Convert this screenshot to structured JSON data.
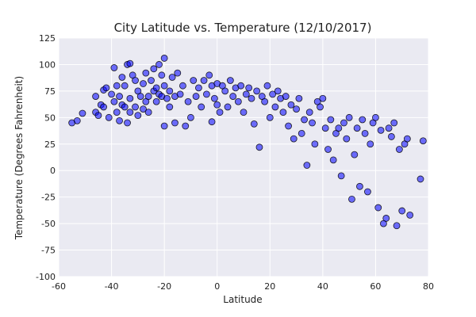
{
  "chart_data": {
    "type": "scatter",
    "title": "City Latitude vs. Temperature (12/10/2017)",
    "xlabel": "Latitude",
    "ylabel": "Temperature (Degrees Fahrenheit)",
    "xlim": [
      -60,
      80
    ],
    "ylim": [
      -100,
      125
    ],
    "xticks": [
      -60,
      -40,
      -20,
      0,
      20,
      40,
      60,
      80
    ],
    "yticks": [
      -100,
      -75,
      -50,
      -25,
      0,
      25,
      50,
      75,
      100,
      125
    ],
    "grid": true,
    "marker_color": "#0000ff",
    "edge_color": "#000000",
    "background": "#eaeaf2",
    "series": [
      {
        "x": [
          -55,
          -53,
          -51,
          -46,
          -46,
          -45,
          -44,
          -43,
          -43,
          -42,
          -41,
          -40,
          -39,
          -39,
          -38,
          -38,
          -37,
          -37,
          -36,
          -36,
          -35,
          -35,
          -34,
          -34,
          -33,
          -33,
          -33,
          -32,
          -31,
          -31,
          -30,
          -30,
          -29,
          -28,
          -28,
          -27,
          -27,
          -26,
          -26,
          -25,
          -24,
          -24,
          -23,
          -23,
          -22,
          -22,
          -21,
          -21,
          -20,
          -20,
          -20,
          -19,
          -18,
          -18,
          -17,
          -16,
          -16,
          -15,
          -14,
          -13,
          -12,
          -11,
          -10,
          -9,
          -8,
          -7,
          -6,
          -5,
          -4,
          -3,
          -2,
          -2,
          -1,
          0,
          0,
          1,
          2,
          3,
          4,
          5,
          6,
          7,
          8,
          9,
          10,
          11,
          12,
          13,
          14,
          15,
          16,
          17,
          18,
          19,
          20,
          21,
          22,
          23,
          24,
          25,
          26,
          27,
          28,
          29,
          30,
          31,
          32,
          33,
          34,
          35,
          36,
          37,
          38,
          39,
          40,
          41,
          42,
          43,
          44,
          45,
          46,
          47,
          48,
          49,
          50,
          51,
          52,
          53,
          54,
          55,
          56,
          57,
          58,
          59,
          60,
          61,
          62,
          63,
          64,
          65,
          66,
          67,
          68,
          69,
          70,
          71,
          72,
          73,
          78,
          77
        ],
        "y": [
          45,
          47,
          54,
          70,
          55,
          52,
          62,
          76,
          60,
          78,
          50,
          72,
          65,
          97,
          55,
          80,
          47,
          70,
          88,
          62,
          60,
          80,
          45,
          100,
          101,
          68,
          55,
          90,
          85,
          60,
          75,
          52,
          70,
          82,
          58,
          65,
          92,
          70,
          55,
          85,
          75,
          96,
          65,
          78,
          72,
          100,
          70,
          90,
          106,
          42,
          80,
          68,
          75,
          60,
          88,
          45,
          70,
          92,
          72,
          80,
          42,
          65,
          50,
          85,
          70,
          78,
          60,
          85,
          72,
          90,
          46,
          80,
          68,
          82,
          62,
          55,
          80,
          75,
          60,
          85,
          70,
          78,
          65,
          80,
          55,
          72,
          78,
          68,
          44,
          75,
          22,
          70,
          65,
          80,
          50,
          72,
          60,
          75,
          68,
          55,
          70,
          42,
          62,
          30,
          58,
          68,
          35,
          48,
          5,
          55,
          45,
          25,
          65,
          60,
          68,
          40,
          20,
          48,
          10,
          35,
          40,
          -5,
          45,
          30,
          50,
          -27,
          15,
          40,
          -15,
          48,
          35,
          -20,
          25,
          45,
          50,
          -35,
          38,
          -50,
          -45,
          40,
          32,
          45,
          -52,
          20,
          -38,
          25,
          30,
          -42,
          28,
          -8
        ]
      }
    ]
  }
}
